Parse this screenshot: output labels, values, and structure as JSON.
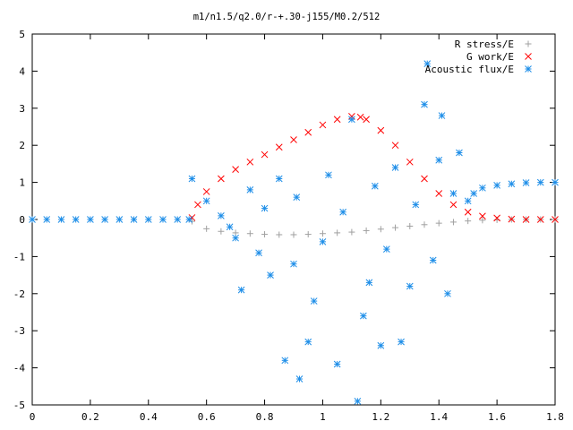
{
  "chart_data": {
    "type": "scatter",
    "title": "m1/n1.5/q2.0/r-+.30-j155/M0.2/512",
    "xlabel": "",
    "ylabel": "",
    "xlim": [
      0,
      1.8
    ],
    "ylim": [
      -5,
      5
    ],
    "xticks": [
      "0",
      "0.2",
      "0.4",
      "0.6",
      "0.8",
      "1",
      "1.2",
      "1.4",
      "1.6",
      "1.8"
    ],
    "yticks": [
      "5",
      "4",
      "3",
      "2",
      "1",
      "0",
      "-1",
      "-2",
      "-3",
      "-4",
      "-5"
    ],
    "grid": false,
    "legend_position": "top-right",
    "series": [
      {
        "name": "R stress/E",
        "marker": "plus",
        "color": "#a0a0a0",
        "x": [
          0.55,
          0.6,
          0.65,
          0.7,
          0.75,
          0.8,
          0.85,
          0.9,
          0.95,
          1.0,
          1.05,
          1.1,
          1.15,
          1.2,
          1.25,
          1.3,
          1.35,
          1.4,
          1.45,
          1.5,
          1.55,
          1.6,
          1.65,
          1.7,
          1.75,
          1.8
        ],
        "y": [
          -0.05,
          -0.25,
          -0.32,
          -0.36,
          -0.38,
          -0.4,
          -0.41,
          -0.41,
          -0.4,
          -0.38,
          -0.36,
          -0.34,
          -0.3,
          -0.26,
          -0.22,
          -0.18,
          -0.14,
          -0.1,
          -0.07,
          -0.04,
          -0.02,
          -0.01,
          0.0,
          0.0,
          0.0,
          0.0
        ]
      },
      {
        "name": "G work/E",
        "marker": "cross",
        "color": "#ff0000",
        "x": [
          0.55,
          0.57,
          0.6,
          0.65,
          0.7,
          0.75,
          0.8,
          0.85,
          0.9,
          0.95,
          1.0,
          1.05,
          1.1,
          1.13,
          1.15,
          1.2,
          1.25,
          1.3,
          1.35,
          1.4,
          1.45,
          1.5,
          1.55,
          1.6,
          1.65,
          1.7,
          1.75,
          1.8
        ],
        "y": [
          0.05,
          0.4,
          0.75,
          1.1,
          1.35,
          1.55,
          1.75,
          1.95,
          2.15,
          2.35,
          2.55,
          2.7,
          2.78,
          2.76,
          2.7,
          2.4,
          2.0,
          1.55,
          1.1,
          0.7,
          0.4,
          0.2,
          0.09,
          0.04,
          0.01,
          0.0,
          0.0,
          0.0
        ]
      },
      {
        "name": "Acoustic flux/E",
        "marker": "star",
        "color": "#1e8ee8",
        "x": [
          0.0,
          0.05,
          0.1,
          0.15,
          0.2,
          0.25,
          0.3,
          0.35,
          0.4,
          0.45,
          0.5,
          0.54,
          0.55,
          0.6,
          0.65,
          0.68,
          0.7,
          0.72,
          0.75,
          0.78,
          0.8,
          0.82,
          0.85,
          0.87,
          0.9,
          0.91,
          0.92,
          0.95,
          0.97,
          1.0,
          1.02,
          1.05,
          1.07,
          1.1,
          1.12,
          1.14,
          1.16,
          1.18,
          1.2,
          1.22,
          1.25,
          1.27,
          1.3,
          1.32,
          1.35,
          1.36,
          1.38,
          1.4,
          1.41,
          1.43,
          1.45,
          1.47,
          1.5,
          1.52,
          1.55,
          1.6,
          1.65,
          1.7,
          1.75,
          1.8
        ],
        "y": [
          0.0,
          0.0,
          0.0,
          0.0,
          0.0,
          0.0,
          0.0,
          0.0,
          0.0,
          0.0,
          0.0,
          0.0,
          1.1,
          0.5,
          0.1,
          -0.2,
          -0.5,
          -1.9,
          0.8,
          -0.9,
          0.3,
          -1.5,
          1.1,
          -3.8,
          -1.2,
          0.6,
          -4.3,
          -3.3,
          -2.2,
          -0.6,
          1.2,
          -3.9,
          0.2,
          2.7,
          -4.9,
          -2.6,
          -1.7,
          0.9,
          -3.4,
          -0.8,
          1.4,
          -3.3,
          -1.8,
          0.4,
          3.1,
          4.2,
          -1.1,
          1.6,
          2.8,
          -2.0,
          0.7,
          1.8,
          0.5,
          0.7,
          0.85,
          0.92,
          0.96,
          0.99,
          1.0,
          1.0
        ]
      }
    ]
  }
}
